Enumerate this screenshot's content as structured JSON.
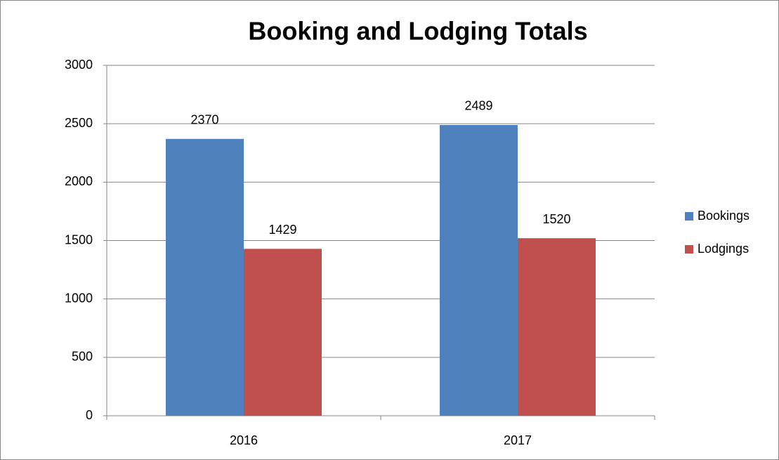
{
  "chart_data": {
    "type": "bar",
    "title": "Booking and Lodging Totals",
    "categories": [
      "2016",
      "2017"
    ],
    "series": [
      {
        "name": "Bookings",
        "color": "#4f81bd",
        "values": [
          2370,
          2489
        ]
      },
      {
        "name": "Lodgings",
        "color": "#c0504d",
        "values": [
          1429,
          1520
        ]
      }
    ],
    "ylim": [
      0,
      3000
    ],
    "yticks": [
      0,
      500,
      1000,
      1500,
      2000,
      2500,
      3000
    ],
    "grid": true,
    "legend": "right"
  }
}
